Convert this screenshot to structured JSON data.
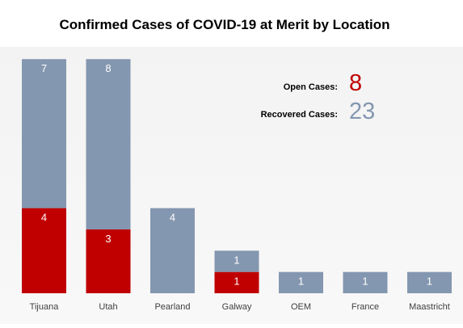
{
  "chart_data": {
    "type": "bar",
    "stacked": true,
    "title": "Confirmed Cases of COVID-19 at Merit by Location",
    "categories": [
      "Tijuana",
      "Utah",
      "Pearland",
      "Galway",
      "OEM",
      "France",
      "Maastricht"
    ],
    "series": [
      {
        "key": "open",
        "values": [
          4,
          3,
          0,
          1,
          0,
          0,
          0
        ],
        "color": "#c00000"
      },
      {
        "key": "recovered",
        "values": [
          7,
          8,
          4,
          1,
          1,
          1,
          1
        ],
        "color": "#8497b0"
      }
    ],
    "ylim": [
      0,
      11.5
    ],
    "grid": false,
    "legend": "none",
    "annotations": {
      "open_label": "Open Cases:",
      "open_value": "8",
      "open_color": "#c00000",
      "recovered_label": "Recovered Cases:",
      "recovered_value": "23",
      "recovered_color": "#8497b0"
    }
  }
}
